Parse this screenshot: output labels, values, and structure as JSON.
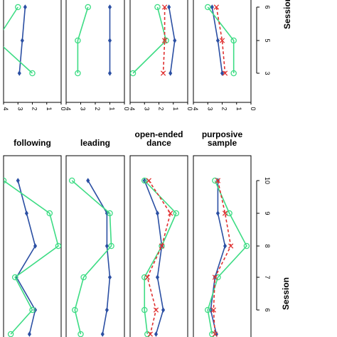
{
  "chart_data": [
    {
      "type": "line",
      "section": "top",
      "axis_label": "Session",
      "session_ticks": [
        "6",
        "5",
        "3"
      ],
      "score_ticks": [
        "4",
        "3",
        "2",
        "1",
        "0"
      ],
      "score_range": [
        0,
        4
      ],
      "panels": [
        {
          "title": "",
          "series": [
            {
              "color": "#2b4fa3",
              "marker": "diamond",
              "dashed": false,
              "points": [
                [
                  6,
                  2.5
                ],
                [
                  5,
                  2.7
                ],
                [
                  3,
                  2.9
                ]
              ]
            },
            {
              "color": "#3ddc84",
              "marker": "circle",
              "dashed": false,
              "points": [
                [
                  6,
                  3.0
                ],
                [
                  5,
                  4.5
                ],
                [
                  3,
                  2.0
                ]
              ]
            }
          ]
        },
        {
          "title": "",
          "series": [
            {
              "color": "#2b4fa3",
              "marker": "diamond",
              "dashed": false,
              "points": [
                [
                  6,
                  1.0
                ],
                [
                  5,
                  1.0
                ],
                [
                  3,
                  1.0
                ]
              ]
            },
            {
              "color": "#3ddc84",
              "marker": "circle",
              "dashed": false,
              "points": [
                [
                  6,
                  2.5
                ],
                [
                  5,
                  3.2
                ],
                [
                  3,
                  3.2
                ]
              ]
            }
          ]
        },
        {
          "title": "",
          "series": [
            {
              "color": "#2b4fa3",
              "marker": "diamond",
              "dashed": false,
              "points": [
                [
                  6,
                  1.3
                ],
                [
                  5,
                  0.9
                ],
                [
                  3,
                  1.2
                ]
              ]
            },
            {
              "color": "#3ddc84",
              "marker": "circle",
              "dashed": false,
              "points": [
                [
                  6,
                  2.1
                ],
                [
                  5,
                  1.5
                ],
                [
                  3,
                  3.8
                ]
              ]
            },
            {
              "color": "#e03030",
              "marker": "cross",
              "dashed": true,
              "points": [
                [
                  6,
                  1.6
                ],
                [
                  5,
                  1.6
                ],
                [
                  3,
                  1.7
                ]
              ]
            }
          ]
        },
        {
          "title": "",
          "series": [
            {
              "color": "#2b4fa3",
              "marker": "diamond",
              "dashed": false,
              "points": [
                [
                  6,
                  2.7
                ],
                [
                  5,
                  2.3
                ],
                [
                  3,
                  2.0
                ]
              ]
            },
            {
              "color": "#3ddc84",
              "marker": "circle",
              "dashed": false,
              "points": [
                [
                  6,
                  3.0
                ],
                [
                  5,
                  1.2
                ],
                [
                  3,
                  1.2
                ]
              ]
            },
            {
              "color": "#e03030",
              "marker": "cross",
              "dashed": true,
              "points": [
                [
                  6,
                  2.4
                ],
                [
                  5,
                  2.0
                ],
                [
                  3,
                  1.8
                ]
              ]
            }
          ]
        }
      ]
    },
    {
      "type": "line",
      "section": "bottom",
      "axis_label": "Session",
      "session_ticks": [
        "10",
        "9",
        "8",
        "7",
        "6"
      ],
      "score_range": [
        0,
        4
      ],
      "panels": [
        {
          "title": "following",
          "series": [
            {
              "color": "#2b4fa3",
              "marker": "diamond",
              "dashed": false,
              "points": [
                [
                  10,
                  3.0
                ],
                [
                  9,
                  2.4
                ],
                [
                  8,
                  1.8
                ],
                [
                  7,
                  3.1
                ],
                [
                  6,
                  1.8
                ],
                [
                  5,
                  2.2
                ]
              ]
            },
            {
              "color": "#3ddc84",
              "marker": "circle",
              "dashed": false,
              "points": [
                [
                  10,
                  4.0
                ],
                [
                  9,
                  0.8
                ],
                [
                  8,
                  0.2
                ],
                [
                  7,
                  3.2
                ],
                [
                  6,
                  2.0
                ],
                [
                  5,
                  3.5
                ]
              ]
            }
          ]
        },
        {
          "title": "leading",
          "series": [
            {
              "color": "#2b4fa3",
              "marker": "diamond",
              "dashed": false,
              "points": [
                [
                  10,
                  2.5
                ],
                [
                  9,
                  1.2
                ],
                [
                  8,
                  1.2
                ],
                [
                  7,
                  1.0
                ],
                [
                  6,
                  1.2
                ],
                [
                  5,
                  1.5
                ]
              ]
            },
            {
              "color": "#3ddc84",
              "marker": "circle",
              "dashed": false,
              "points": [
                [
                  10,
                  3.6
                ],
                [
                  9,
                  1.0
                ],
                [
                  8,
                  0.9
                ],
                [
                  7,
                  2.8
                ],
                [
                  6,
                  3.4
                ],
                [
                  5,
                  3.0
                ]
              ]
            }
          ]
        },
        {
          "title": "open-ended dance",
          "series": [
            {
              "color": "#2b4fa3",
              "marker": "diamond",
              "dashed": false,
              "points": [
                [
                  10,
                  3.0
                ],
                [
                  9,
                  2.1
                ],
                [
                  8,
                  1.8
                ],
                [
                  7,
                  2.1
                ],
                [
                  6,
                  1.7
                ],
                [
                  5,
                  2.2
                ]
              ]
            },
            {
              "color": "#3ddc84",
              "marker": "circle",
              "dashed": false,
              "points": [
                [
                  10,
                  3.0
                ],
                [
                  9,
                  0.8
                ],
                [
                  8,
                  1.8
                ],
                [
                  7,
                  3.0
                ],
                [
                  6,
                  3.0
                ],
                [
                  5,
                  2.8
                ]
              ]
            },
            {
              "color": "#e03030",
              "marker": "cross",
              "dashed": true,
              "points": [
                [
                  10,
                  2.7
                ],
                [
                  9,
                  1.2
                ],
                [
                  8,
                  1.8
                ],
                [
                  7,
                  2.8
                ],
                [
                  6,
                  2.2
                ],
                [
                  5,
                  2.6
                ]
              ]
            }
          ]
        },
        {
          "title": "purposive sample",
          "series": [
            {
              "color": "#2b4fa3",
              "marker": "diamond",
              "dashed": false,
              "points": [
                [
                  10,
                  2.3
                ],
                [
                  9,
                  2.3
                ],
                [
                  8,
                  1.8
                ],
                [
                  7,
                  2.5
                ],
                [
                  6,
                  2.8
                ],
                [
                  5,
                  2.4
                ]
              ]
            },
            {
              "color": "#3ddc84",
              "marker": "circle",
              "dashed": false,
              "points": [
                [
                  10,
                  2.5
                ],
                [
                  9,
                  1.5
                ],
                [
                  8,
                  0.3
                ],
                [
                  7,
                  2.3
                ],
                [
                  6,
                  3.0
                ],
                [
                  5,
                  2.7
                ]
              ]
            },
            {
              "color": "#e03030",
              "marker": "cross",
              "dashed": true,
              "points": [
                [
                  10,
                  2.3
                ],
                [
                  9,
                  1.8
                ],
                [
                  8,
                  1.4
                ],
                [
                  7,
                  2.5
                ],
                [
                  6,
                  2.6
                ],
                [
                  5,
                  2.5
                ]
              ]
            }
          ]
        }
      ]
    }
  ]
}
